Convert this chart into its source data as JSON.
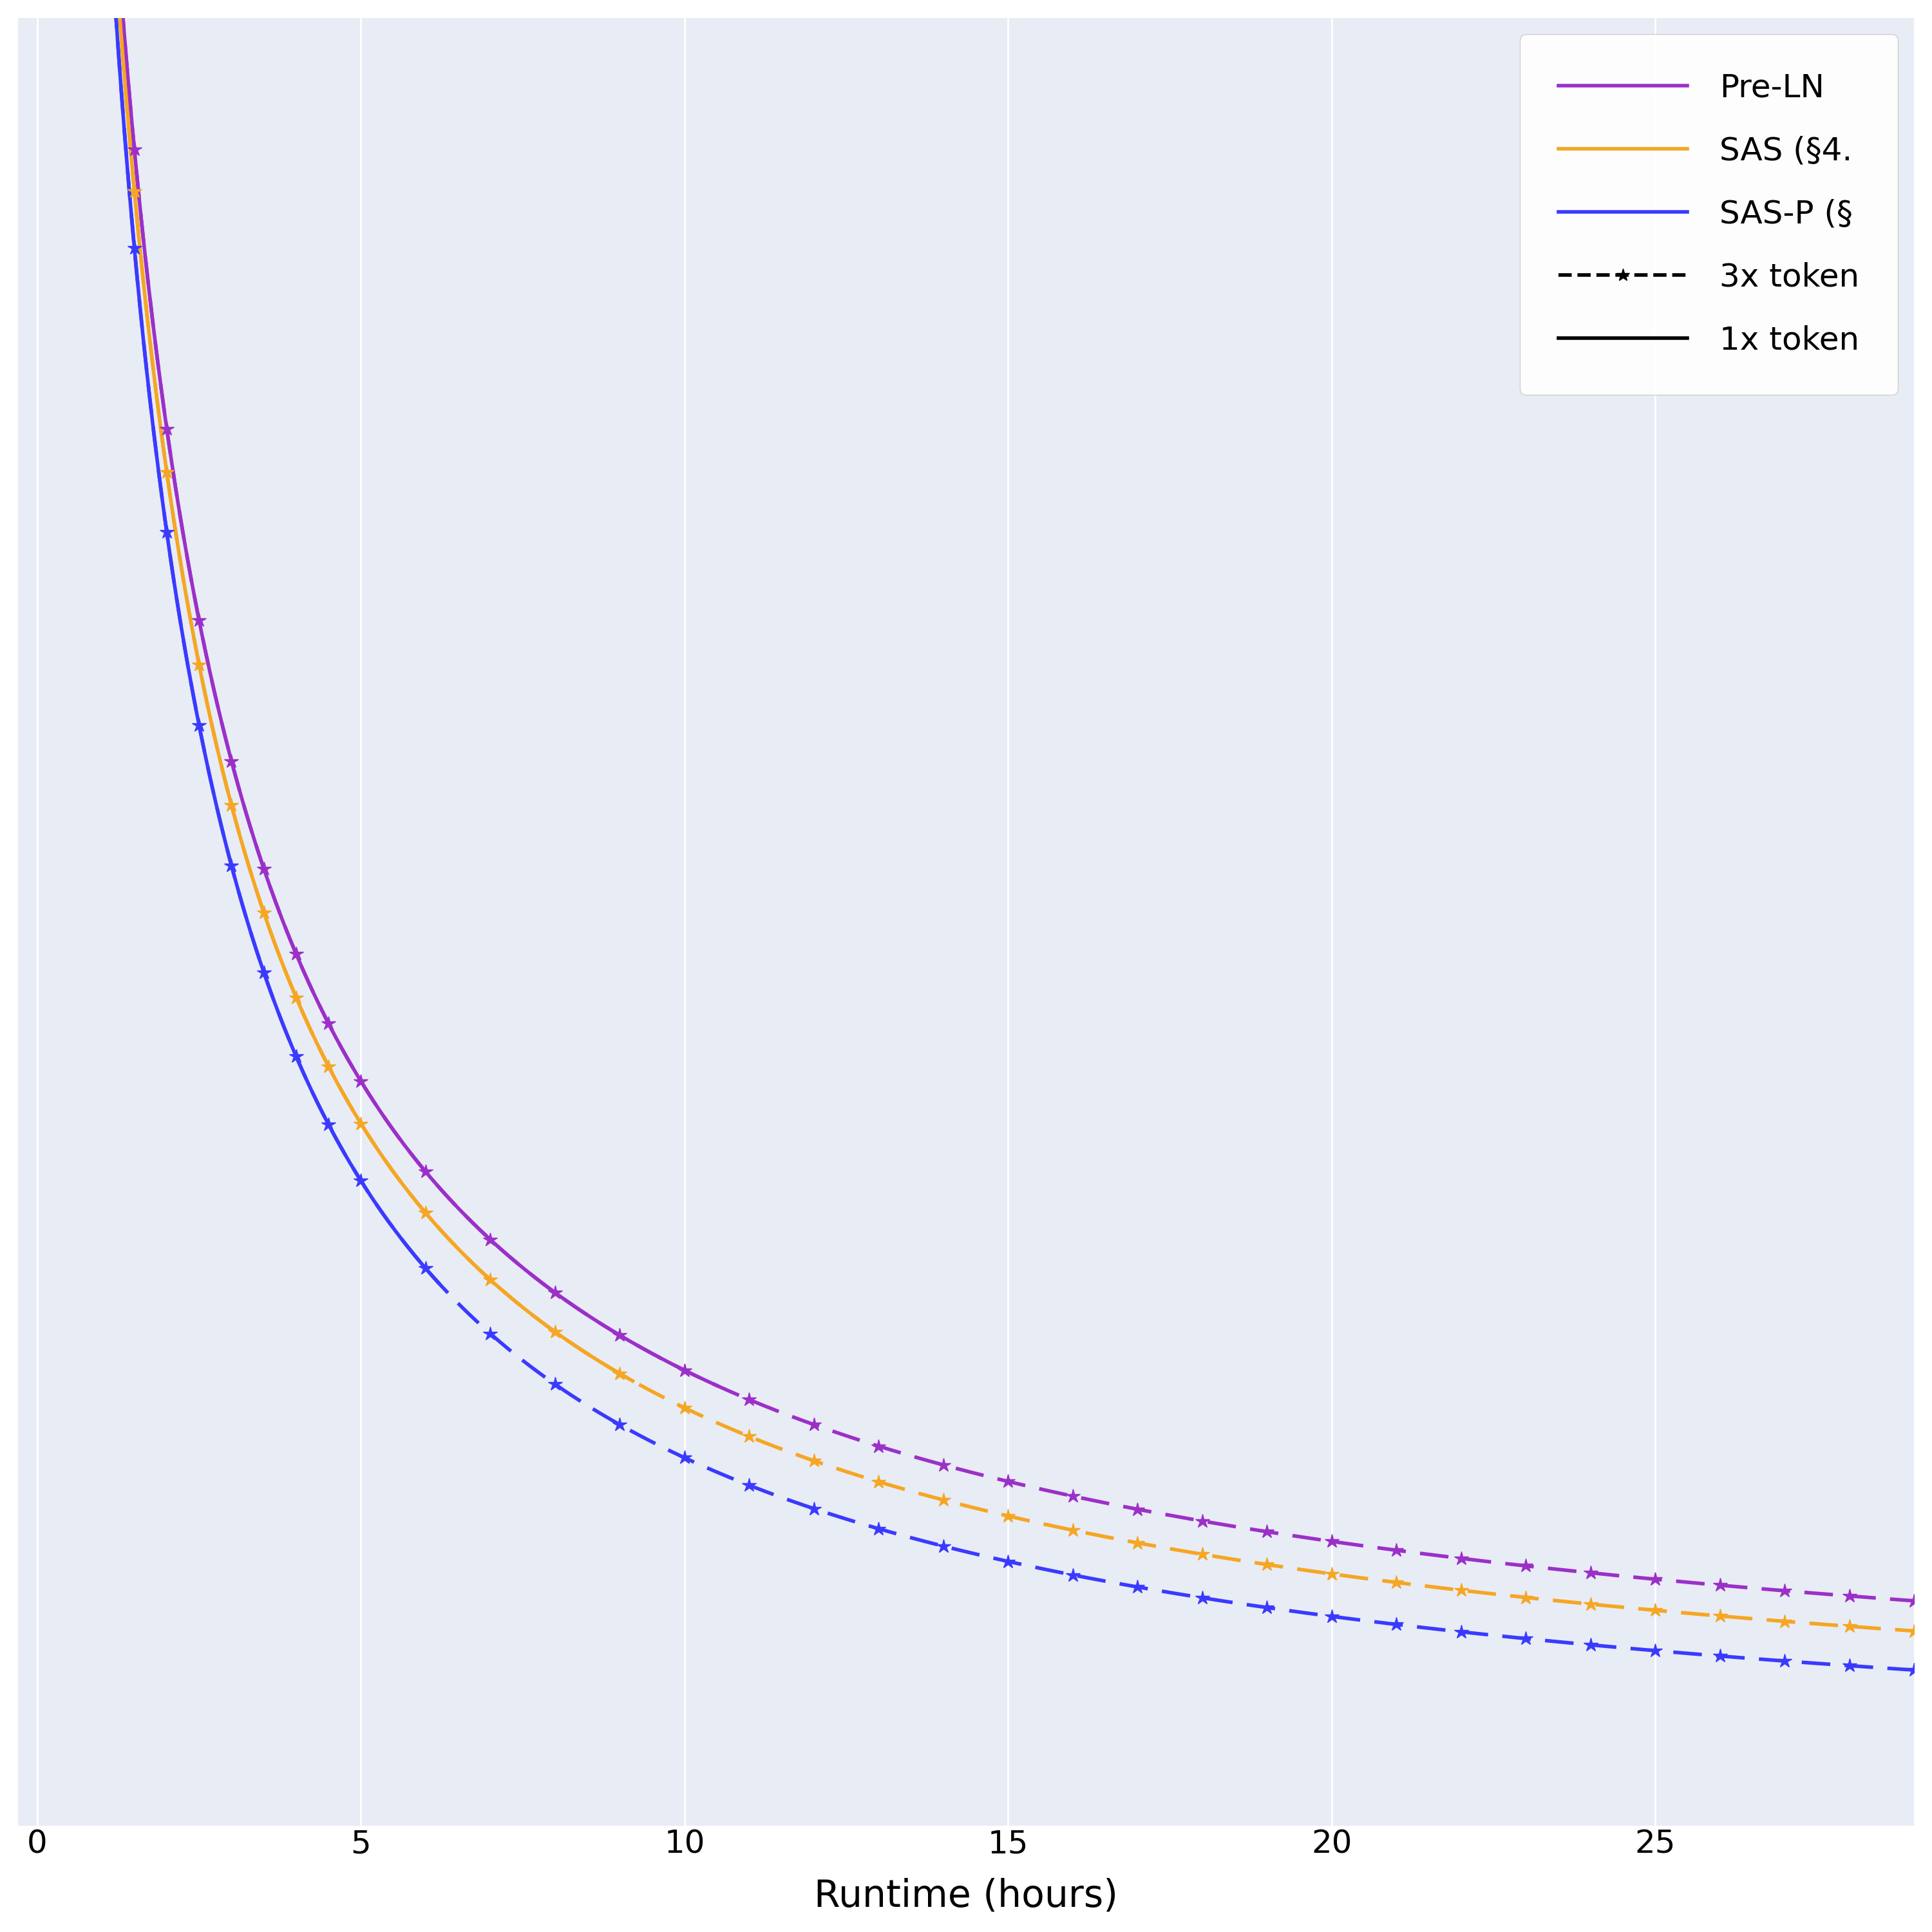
{
  "title": "",
  "xlabel": "Runtime (hours)",
  "ylabel": "",
  "background_color": "#e8ecf5",
  "figure_bg": "#ffffff",
  "xlim": [
    -0.3,
    29
  ],
  "ylim": [
    2.55,
    10.0
  ],
  "x_ticks": [
    0,
    5,
    10,
    15,
    20,
    25
  ],
  "colors": {
    "pre_ln": "#9b30c8",
    "sas": "#f5a623",
    "sas_p": "#3a3aff"
  },
  "line_width": 4.0,
  "marker_size": 16,
  "xlabel_fontsize": 42,
  "tick_fontsize": 36,
  "legend_fontsize": 36
}
